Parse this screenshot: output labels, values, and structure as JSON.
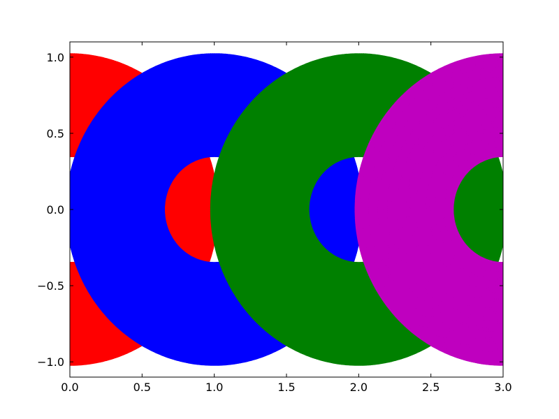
{
  "chart_data": {
    "type": "scatter",
    "title": "",
    "xlabel": "",
    "ylabel": "",
    "xlim": [
      0.0,
      3.0
    ],
    "ylim": [
      -1.1,
      1.1
    ],
    "grid": false,
    "legend": "none",
    "x_ticks": [
      0.0,
      0.5,
      1.0,
      1.5,
      2.0,
      2.5,
      3.0
    ],
    "x_tick_labels": [
      "0.0",
      "0.5",
      "1.0",
      "1.5",
      "2.0",
      "2.5",
      "3.0"
    ],
    "y_ticks": [
      -1.0,
      -0.5,
      0.0,
      0.5,
      1.0
    ],
    "y_tick_labels": [
      "−1.0",
      "−0.5",
      "0.0",
      "0.5",
      "1.0"
    ],
    "series": [
      {
        "color": "#ff0000",
        "center_x": 0.0,
        "inner_radius": 0.37,
        "outer_radius": 1.0
      },
      {
        "color": "#0000ff",
        "center_x": 1.0,
        "inner_radius": 0.37,
        "outer_radius": 1.0
      },
      {
        "color": "#008000",
        "center_x": 2.0,
        "inner_radius": 0.37,
        "outer_radius": 1.0
      },
      {
        "color": "#bf00bf",
        "center_x": 3.0,
        "inner_radius": 0.37,
        "outer_radius": 1.0
      }
    ]
  }
}
